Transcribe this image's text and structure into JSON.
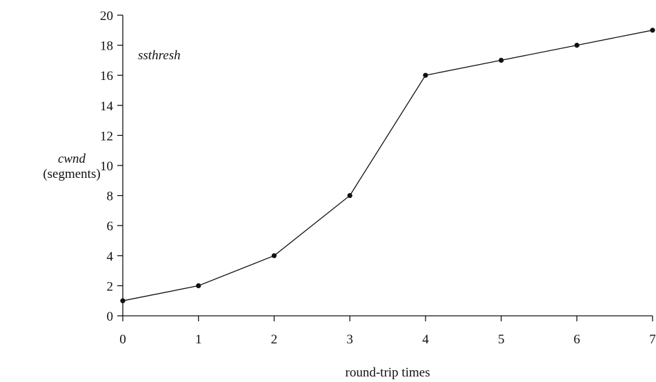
{
  "chart_data": {
    "type": "line",
    "xlabel": "round-trip times",
    "ylabel_line1": "cwnd",
    "ylabel_line2": "(segments)",
    "annotation": "ssthresh",
    "xlim": [
      0,
      7
    ],
    "ylim": [
      0,
      20
    ],
    "x_ticks": [
      0,
      1,
      2,
      3,
      4,
      5,
      6,
      7
    ],
    "y_ticks": [
      0,
      2,
      4,
      6,
      8,
      10,
      12,
      14,
      16,
      18,
      20
    ],
    "grid": false,
    "legend": "none",
    "series": [
      {
        "x": [
          0,
          1,
          2,
          3,
          4,
          5,
          6,
          7
        ],
        "y": [
          1,
          2,
          4,
          8,
          16,
          17,
          18,
          19
        ]
      }
    ],
    "line_color": "#111111"
  }
}
